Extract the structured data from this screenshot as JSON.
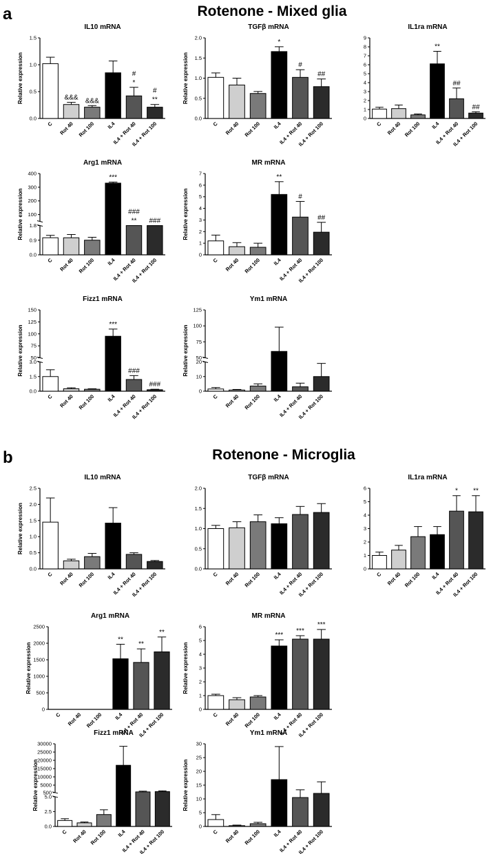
{
  "panels": [
    {
      "letter": "a",
      "title": "Rotenone - Mixed glia"
    },
    {
      "letter": "b",
      "title": "Rotenone - Microglia"
    }
  ],
  "colors": {
    "bar_fills": [
      "#ffffff",
      "#cfcfcf",
      "#7a7a7a",
      "#000000",
      "#555555",
      "#2b2b2b"
    ],
    "axis": "#000000"
  },
  "chart_data": [
    {
      "type": "bar",
      "panel": "a",
      "title": "IL10 mRNA",
      "ylabel": "Relative expression",
      "categories": [
        "C",
        "Rot 40",
        "Rot 100",
        "IL4",
        "IL4 + Rot 40",
        "IL4 + Rot 100"
      ],
      "values": [
        1.02,
        0.26,
        0.21,
        0.85,
        0.42,
        0.21
      ],
      "errors": [
        0.12,
        0.04,
        0.03,
        0.22,
        0.16,
        0.05
      ],
      "ylim": [
        0,
        1.5
      ],
      "yticks": [
        "0.0",
        "0.5",
        "1.0",
        "1.5"
      ],
      "annotations": [
        "",
        "&&&",
        "&&&",
        "",
        "#\n*",
        "#\n**"
      ]
    },
    {
      "type": "bar",
      "panel": "a",
      "title": "TGFβ mRNA",
      "ylabel": "Relative expression",
      "categories": [
        "C",
        "Rot 40",
        "Rot 100",
        "IL4",
        "IL4 + Rot 40",
        "IL4 + Rot 100"
      ],
      "values": [
        1.02,
        0.83,
        0.62,
        1.66,
        1.02,
        0.79
      ],
      "errors": [
        0.11,
        0.17,
        0.05,
        0.12,
        0.19,
        0.19
      ],
      "ylim": [
        0,
        2.0
      ],
      "yticks": [
        "0.0",
        "0.5",
        "1.0",
        "1.5",
        "2.0"
      ],
      "annotations": [
        "",
        "",
        "",
        "*",
        "#",
        "##"
      ]
    },
    {
      "type": "bar",
      "panel": "a",
      "title": "IL1ra mRNA",
      "ylabel": "",
      "categories": [
        "C",
        "Rot 40",
        "Rot 100",
        "IL4",
        "IL4 + Rot 40",
        "IL4 + Rot 100"
      ],
      "values": [
        1.05,
        1.1,
        0.4,
        6.1,
        2.2,
        0.6
      ],
      "errors": [
        0.2,
        0.4,
        0.1,
        1.4,
        1.2,
        0.15
      ],
      "ylim": [
        0,
        9
      ],
      "yticks": [
        "0",
        "1",
        "2",
        "3",
        "4",
        "5",
        "6",
        "7",
        "8",
        "9"
      ],
      "annotations": [
        "",
        "",
        "",
        "**",
        "##",
        "##"
      ]
    },
    {
      "type": "bar",
      "panel": "a",
      "title": "Arg1 mRNA",
      "ylabel": "Relative expression",
      "categories": [
        "C",
        "Rot 40",
        "Rot 100",
        "IL4",
        "IL4 + Rot 40",
        "IL4 + Rot 100"
      ],
      "values": [
        1.05,
        1.05,
        0.9,
        330,
        40,
        20
      ],
      "errors": [
        0.15,
        0.2,
        0.18,
        8,
        8,
        4
      ],
      "axis_break": {
        "lower": [
          0,
          1.8
        ],
        "upper": [
          50,
          400
        ],
        "lower_ticks": [
          "0.0",
          "0.9",
          "1.8"
        ],
        "upper_ticks": [
          "100",
          "200",
          "300",
          "400"
        ]
      },
      "annotations": [
        "",
        "",
        "",
        "***",
        "###\n**",
        "###"
      ]
    },
    {
      "type": "bar",
      "panel": "a",
      "title": "MR mRNA",
      "ylabel": "Relative expression",
      "categories": [
        "C",
        "Rot 40",
        "Rot 100",
        "IL4",
        "IL4 + Rot 40",
        "IL4 + Rot 100"
      ],
      "values": [
        1.2,
        0.7,
        0.65,
        5.2,
        3.25,
        1.95
      ],
      "errors": [
        0.5,
        0.35,
        0.35,
        1.1,
        1.35,
        0.85
      ],
      "ylim": [
        0,
        7
      ],
      "yticks": [
        "0",
        "1",
        "2",
        "3",
        "4",
        "5",
        "6",
        "7"
      ],
      "annotations": [
        "",
        "",
        "",
        "**",
        "#",
        "##"
      ]
    },
    {
      "type": "bar",
      "panel": "a",
      "title": "Fizz1 mRNA",
      "ylabel": "Relative expression",
      "categories": [
        "C",
        "Rot 40",
        "Rot 100",
        "IL4",
        "IL4 + Rot 40",
        "IL4 + Rot 100"
      ],
      "values": [
        1.5,
        0.25,
        0.2,
        95,
        1.2,
        0.15
      ],
      "errors": [
        0.7,
        0.1,
        0.05,
        15,
        0.4,
        0.05
      ],
      "axis_break": {
        "lower": [
          0,
          3.0
        ],
        "upper": [
          50,
          150
        ],
        "lower_ticks": [
          "0.0",
          "1.5",
          "3.0"
        ],
        "upper_ticks": [
          "50",
          "75",
          "100",
          "125",
          "150"
        ]
      },
      "annotations": [
        "",
        "",
        "",
        "***",
        "###",
        "###"
      ]
    },
    {
      "type": "bar",
      "panel": "a",
      "title": "Ym1 mRNA",
      "ylabel": "Relative expression",
      "categories": [
        "C",
        "Rot 40",
        "Rot 100",
        "IL4",
        "IL4 + Rot 40",
        "IL4 + Rot 100"
      ],
      "values": [
        1.5,
        0.8,
        3.5,
        60,
        3.0,
        10
      ],
      "errors": [
        1.0,
        0.4,
        1.5,
        38,
        2.5,
        9
      ],
      "axis_break": {
        "lower": [
          0,
          20
        ],
        "upper": [
          50,
          125
        ],
        "lower_ticks": [
          "0",
          "10",
          "20"
        ],
        "upper_ticks": [
          "50",
          "75",
          "100",
          "125"
        ]
      },
      "annotations": [
        "",
        "",
        "",
        "",
        "",
        ""
      ]
    },
    {
      "type": "bar",
      "panel": "b",
      "title": "IL10 mRNA",
      "ylabel": "Relative expression",
      "categories": [
        "C",
        "Rot 40",
        "Rot 100",
        "IL4",
        "IL4 + Rot 40",
        "IL4 + Rot 100"
      ],
      "values": [
        1.45,
        0.25,
        0.38,
        1.42,
        0.45,
        0.23
      ],
      "errors": [
        0.75,
        0.05,
        0.1,
        0.48,
        0.05,
        0.03
      ],
      "ylim": [
        0,
        2.5
      ],
      "yticks": [
        "0.0",
        "0.5",
        "1.0",
        "1.5",
        "2.0",
        "2.5"
      ],
      "annotations": [
        "",
        "",
        "",
        "",
        "",
        ""
      ]
    },
    {
      "type": "bar",
      "panel": "b",
      "title": "TGFβ mRNA",
      "ylabel": "",
      "categories": [
        "C",
        "Rot 40",
        "Rot 100",
        "IL4",
        "IL4 + Rot 40",
        "IL4 + Rot 100"
      ],
      "values": [
        1.0,
        1.02,
        1.17,
        1.12,
        1.35,
        1.4
      ],
      "errors": [
        0.08,
        0.15,
        0.17,
        0.15,
        0.2,
        0.22
      ],
      "ylim": [
        0,
        2.0
      ],
      "yticks": [
        "0.0",
        "0.5",
        "1.0",
        "1.5",
        "2.0"
      ],
      "annotations": [
        "",
        "",
        "",
        "",
        "",
        ""
      ]
    },
    {
      "type": "bar",
      "panel": "b",
      "title": "IL1ra mRNA",
      "ylabel": "",
      "categories": [
        "C",
        "Rot 40",
        "Rot 100",
        "IL4",
        "IL4 + Rot 40",
        "IL4 + Rot 100"
      ],
      "values": [
        1.0,
        1.4,
        2.4,
        2.55,
        4.3,
        4.25
      ],
      "errors": [
        0.25,
        0.35,
        0.75,
        0.6,
        1.15,
        1.2
      ],
      "ylim": [
        0,
        6
      ],
      "yticks": [
        "0",
        "1",
        "2",
        "3",
        "4",
        "5",
        "6"
      ],
      "annotations": [
        "",
        "",
        "",
        "",
        "*",
        "**"
      ]
    },
    {
      "type": "bar",
      "panel": "b",
      "title": "Arg1 mRNA",
      "ylabel": "Relative expression",
      "categories": [
        "C",
        "Rot 40",
        "Rot 100",
        "IL4",
        "IL4 + Rot 40",
        "IL4 + Rot 100"
      ],
      "values": [
        0,
        0,
        0,
        1530,
        1420,
        1740
      ],
      "errors": [
        0,
        0,
        0,
        440,
        410,
        450
      ],
      "ylim": [
        0,
        2500
      ],
      "yticks": [
        "0",
        "500",
        "1000",
        "1500",
        "2000",
        "2500"
      ],
      "annotations": [
        "",
        "",
        "",
        "**",
        "**",
        "**"
      ]
    },
    {
      "type": "bar",
      "panel": "b",
      "title": "MR mRNA",
      "ylabel": "Relative expression",
      "categories": [
        "C",
        "Rot 40",
        "Rot 100",
        "IL4",
        "IL4 + Rot 40",
        "IL4 + Rot 100"
      ],
      "values": [
        1.0,
        0.7,
        0.9,
        4.6,
        5.1,
        5.1
      ],
      "errors": [
        0.1,
        0.15,
        0.1,
        0.45,
        0.25,
        0.7
      ],
      "ylim": [
        0,
        6
      ],
      "yticks": [
        "0",
        "1",
        "2",
        "3",
        "4",
        "5",
        "6"
      ],
      "annotations": [
        "",
        "",
        "",
        "***",
        "***",
        "***"
      ]
    },
    {
      "type": "bar",
      "panel": "b",
      "title": "Fizz1 mRNA",
      "ylabel": "Relative expression",
      "categories": [
        "C",
        "Rot 40",
        "Rot 100",
        "IL4",
        "IL4 + Rot 40",
        "IL4 + Rot 100"
      ],
      "values": [
        1.0,
        0.6,
        2.0,
        17000,
        900,
        1100
      ],
      "errors": [
        0.3,
        0.15,
        0.8,
        11500,
        450,
        450
      ],
      "axis_break": {
        "lower": [
          0,
          5.0
        ],
        "upper": [
          500,
          30000
        ],
        "lower_ticks": [
          "0.0",
          "2.5",
          "5.0"
        ],
        "upper_ticks": [
          "500",
          "5000",
          "10000",
          "15000",
          "20000",
          "25000",
          "30000"
        ]
      },
      "annotations": [
        "",
        "",
        "",
        "",
        "",
        ""
      ]
    },
    {
      "type": "bar",
      "panel": "b",
      "title": "Ym1 mRNA",
      "ylabel": "Relative expression",
      "categories": [
        "C",
        "Rot 40",
        "Rot 100",
        "IL4",
        "IL4 + Rot 40",
        "IL4 + Rot 100"
      ],
      "values": [
        2.5,
        0.3,
        1.0,
        17,
        10.5,
        12
      ],
      "errors": [
        1.8,
        0.2,
        0.5,
        12,
        2.8,
        4.2
      ],
      "ylim": [
        0,
        30
      ],
      "yticks": [
        "0",
        "5",
        "10",
        "15",
        "20",
        "25",
        "30"
      ],
      "annotations": [
        "",
        "",
        "",
        "",
        "",
        ""
      ]
    }
  ]
}
